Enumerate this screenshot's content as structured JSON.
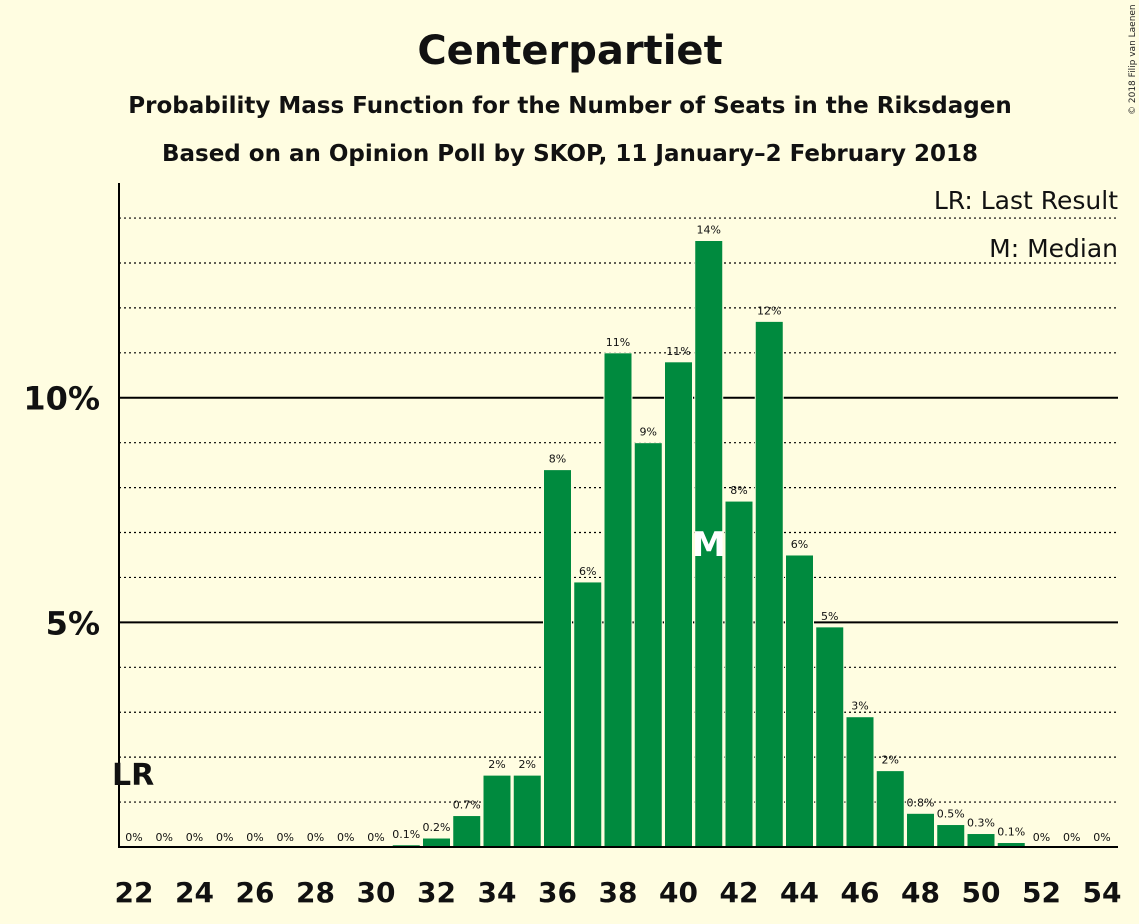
{
  "chart_data": {
    "type": "bar",
    "title": "Centerpartiet",
    "subtitle": "Probability Mass Function for the Number of Seats in the Riksdagen",
    "subtitle2": "Based on an Opinion Poll by SKOP, 11 January–2 February 2018",
    "copyright": "© 2018 Filip van Laenen",
    "legend": [
      "LR: Last Result",
      "M: Median"
    ],
    "last_result_label": "LR",
    "median_label": "M",
    "last_result_seat": 22,
    "median_seat": 41,
    "x": [
      22,
      23,
      24,
      25,
      26,
      27,
      28,
      29,
      30,
      31,
      32,
      33,
      34,
      35,
      36,
      37,
      38,
      39,
      40,
      41,
      42,
      43,
      44,
      45,
      46,
      47,
      48,
      49,
      50,
      51,
      52,
      53,
      54
    ],
    "values": [
      0,
      0,
      0,
      0,
      0,
      0,
      0,
      0,
      0,
      0.05,
      0.2,
      0.7,
      1.6,
      1.6,
      8.4,
      5.9,
      11.0,
      9.0,
      10.8,
      13.5,
      7.7,
      11.7,
      6.5,
      4.9,
      2.9,
      1.7,
      0.75,
      0.5,
      0.3,
      0.1,
      0,
      0,
      0
    ],
    "labels": [
      "0%",
      "0%",
      "0%",
      "0%",
      "0%",
      "0%",
      "0%",
      "0%",
      "0%",
      "0.1%",
      "0.2%",
      "0.7%",
      "2%",
      "2%",
      "8%",
      "6%",
      "11%",
      "9%",
      "11%",
      "14%",
      "8%",
      "12%",
      "6%",
      "5%",
      "3%",
      "2%",
      "0.8%",
      "0.5%",
      "0.3%",
      "0.1%",
      "0%",
      "0%",
      "0%"
    ],
    "x_tick_labels": [
      "22",
      "24",
      "26",
      "28",
      "30",
      "32",
      "34",
      "36",
      "38",
      "40",
      "42",
      "44",
      "46",
      "48",
      "50",
      "52",
      "54"
    ],
    "y_tick_labels": [
      {
        "value": 5,
        "label": "5%"
      },
      {
        "value": 10,
        "label": "10%"
      }
    ],
    "ylim": [
      0,
      14.78
    ],
    "grid": true,
    "legend_position": "top-right",
    "colors": {
      "bar": "#008a3e",
      "background": "#fffde1",
      "text": "#111111"
    }
  }
}
